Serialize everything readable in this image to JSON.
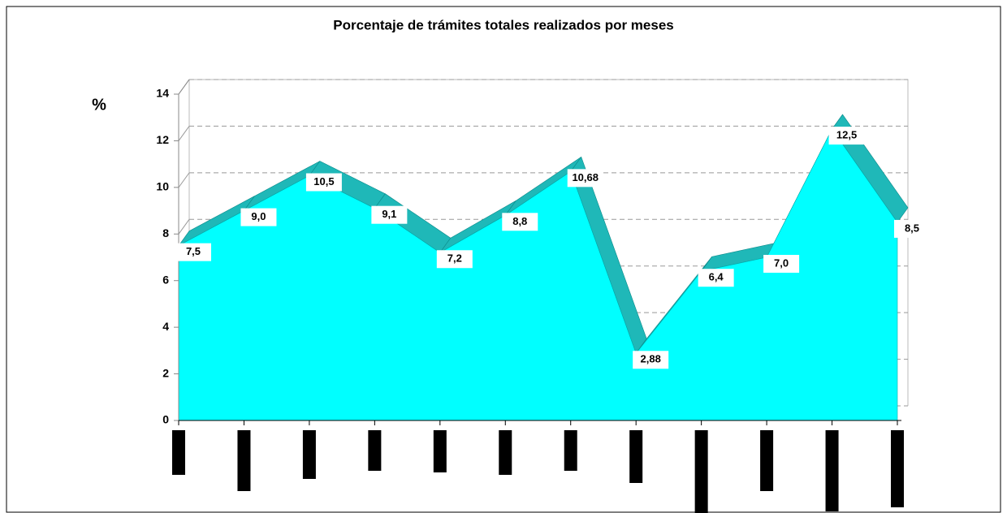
{
  "chart_data": {
    "type": "area",
    "title": "Porcentaje de trámites totales realizados por meses",
    "ylabel": "%",
    "categories": [
      null,
      null,
      null,
      null,
      null,
      null,
      null,
      null,
      null,
      null,
      null,
      null
    ],
    "values": [
      7.5,
      9.0,
      10.5,
      9.1,
      7.2,
      8.8,
      10.68,
      2.88,
      6.4,
      7.0,
      12.5,
      8.5
    ],
    "value_labels": [
      "7,5",
      "9,0",
      "10,5",
      "9,1",
      "7,2",
      "8,8",
      "10,68",
      "2,88",
      "6,4",
      "7,0",
      "12,5",
      "8,5"
    ],
    "color": "#00ffff",
    "top_color": "#1fb8b8",
    "ylim": [
      0,
      14
    ],
    "yticks": [
      0,
      2,
      4,
      6,
      8,
      10,
      12,
      14
    ],
    "grid": true
  }
}
